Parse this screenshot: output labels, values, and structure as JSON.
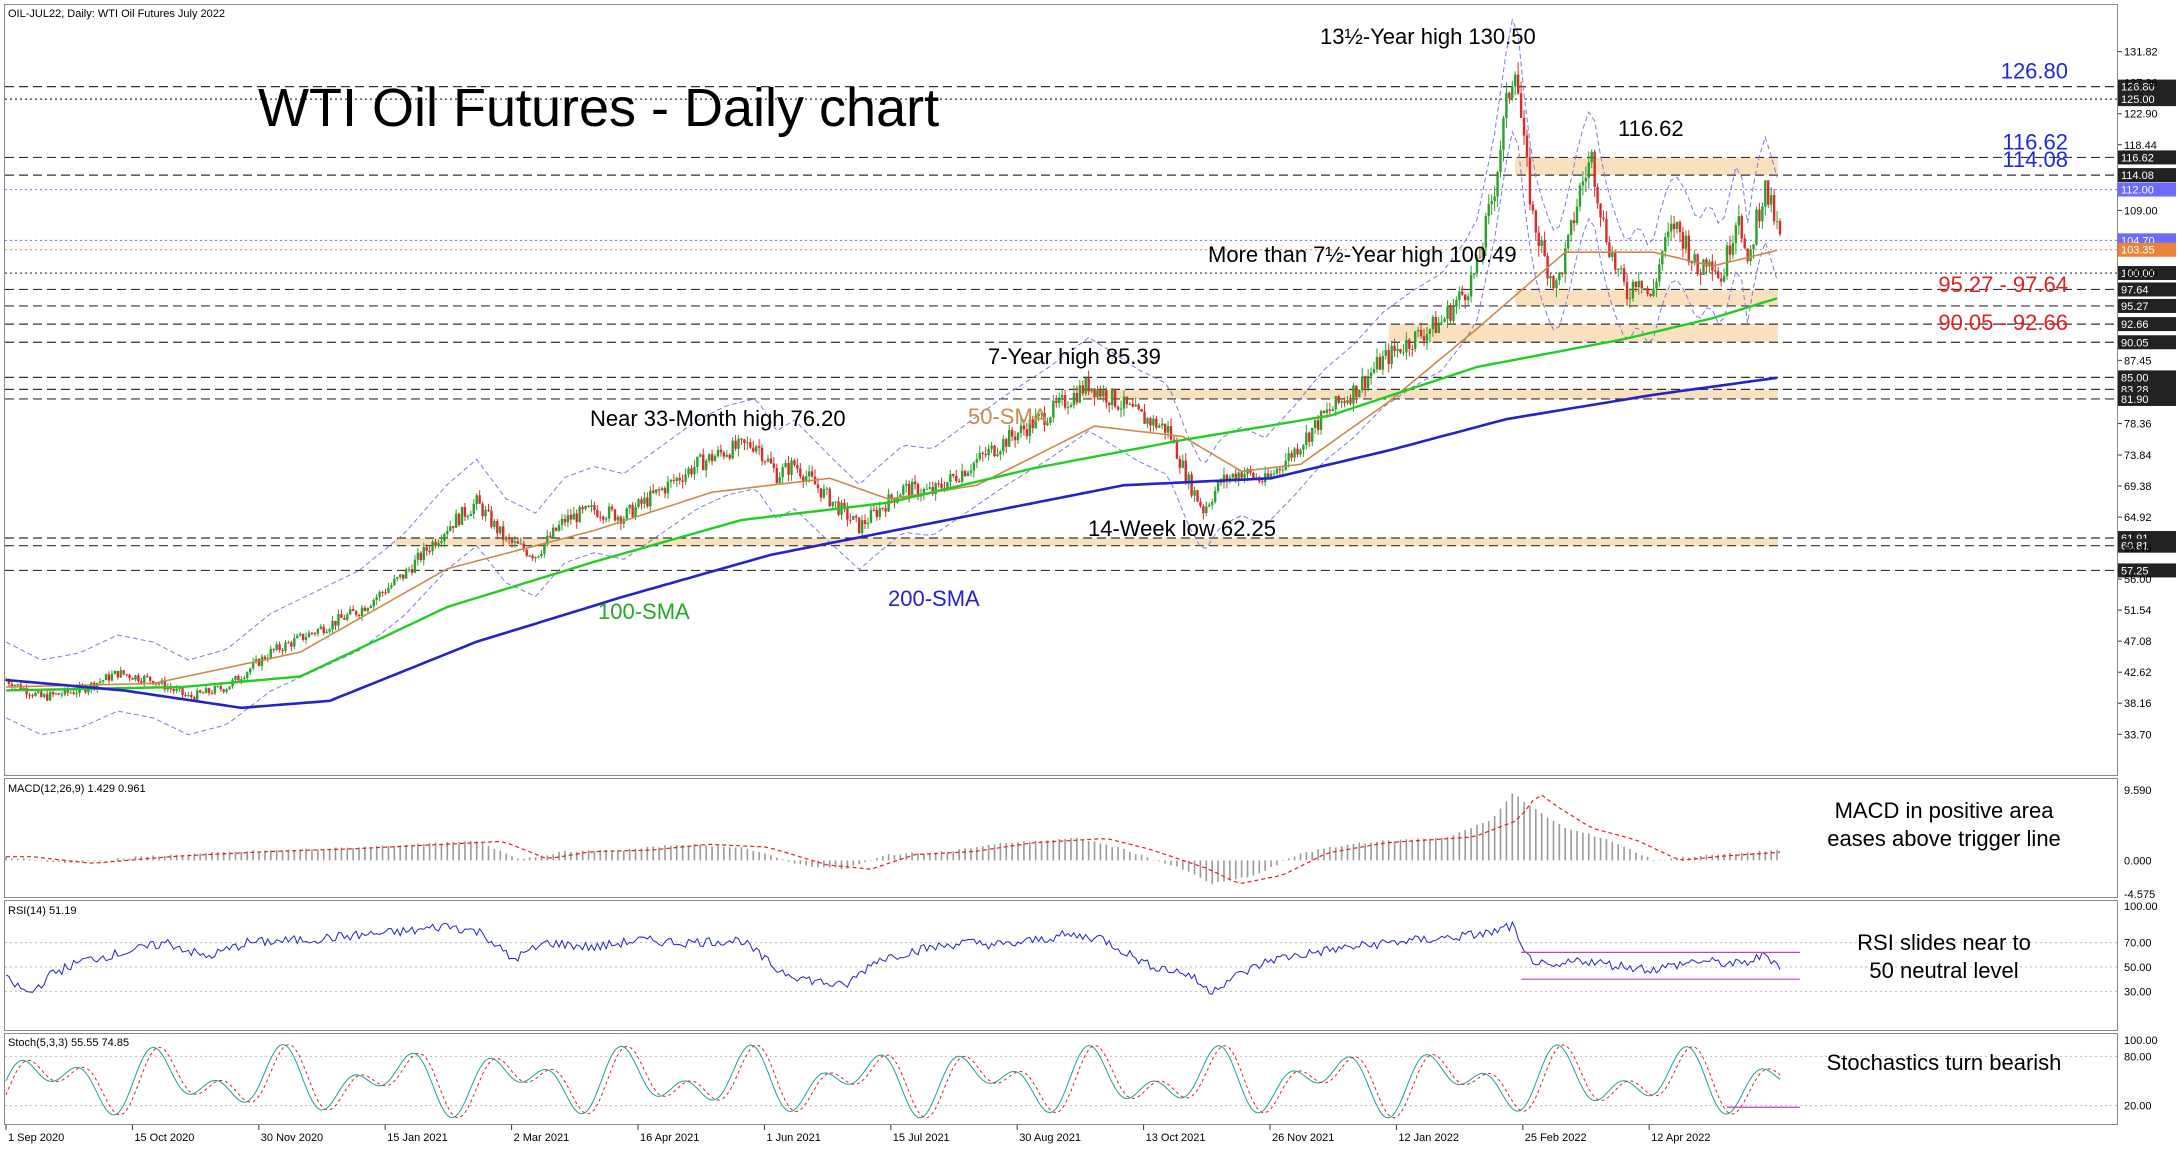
{
  "chart_data": {
    "symbol_header": "OIL-JUL22, Daily:  WTI Oil Futures July 2022",
    "title": "WTI Oil Futures - Daily chart",
    "type": "candlestick",
    "price_axis": {
      "ylim": [
        30.0,
        133.5
      ],
      "ticks": [
        131.82,
        127.36,
        122.9,
        118.44,
        109.0,
        100.0,
        87.45,
        78.36,
        73.84,
        69.38,
        64.92,
        60.46,
        56.0,
        51.54,
        47.08,
        42.62,
        38.16,
        33.7
      ]
    },
    "x_labels": [
      "1 Sep 2020",
      "15 Oct 2020",
      "30 Nov 2020",
      "15 Jan 2021",
      "2 Mar 2021",
      "16 Apr 2021",
      "1 Jun 2021",
      "15 Jul 2021",
      "30 Aug 2021",
      "13 Oct 2021",
      "26 Nov 2021",
      "12 Jan 2022",
      "25 Feb 2022",
      "12 Apr 2022"
    ],
    "levels": [
      {
        "value": 126.8,
        "label": "126.80",
        "style": "dashed",
        "label_color": "#1f2ad6",
        "axis_label": "126.80"
      },
      {
        "value": 125.0,
        "label": "",
        "style": "dotted",
        "label_color": "",
        "axis_label": "125.00"
      },
      {
        "value": 116.62,
        "label": "116.62",
        "style": "dashed",
        "label_color": "#1f2ad6",
        "axis_label": "116.62"
      },
      {
        "value": 114.08,
        "label": "114.08",
        "style": "dashed",
        "label_color": "#1f2ad6",
        "axis_label": "114.08"
      },
      {
        "value": 100.0,
        "label": "",
        "style": "dotted",
        "label_color": "",
        "axis_label": "100.00"
      },
      {
        "value": 97.64,
        "label": "",
        "style": "dashed",
        "label_color": "",
        "axis_label": "97.64"
      },
      {
        "value": 95.27,
        "label": "",
        "style": "dashed",
        "label_color": "",
        "axis_label": "95.27"
      },
      {
        "value": 92.66,
        "label": "",
        "style": "dashed",
        "label_color": "",
        "axis_label": "92.66"
      },
      {
        "value": 90.05,
        "label": "",
        "style": "dashed",
        "label_color": "",
        "axis_label": "90.05"
      },
      {
        "value": 85.0,
        "label": "",
        "style": "dashed",
        "label_color": "",
        "axis_label": "85.00"
      },
      {
        "value": 83.28,
        "label": "",
        "style": "dashed",
        "label_color": "",
        "axis_label": "83.28"
      },
      {
        "value": 81.9,
        "label": "",
        "style": "dashed",
        "label_color": "",
        "axis_label": "81.90"
      },
      {
        "value": 61.91,
        "label": "",
        "style": "dashed",
        "label_color": "",
        "axis_label": "61.91"
      },
      {
        "value": 60.81,
        "label": "",
        "style": "dashed",
        "label_color": "",
        "axis_label": "60.81"
      },
      {
        "value": 57.25,
        "label": "",
        "style": "dashed",
        "label_color": "",
        "axis_label": "57.25"
      }
    ],
    "marker_tags": [
      {
        "value": 112.0,
        "text": "112.00",
        "color": "#6b6bff"
      },
      {
        "value": 104.7,
        "text": "104.70",
        "color": "#6b6bff"
      },
      {
        "value": 103.35,
        "text": "103.35",
        "color": "#e8833a"
      }
    ],
    "zones": [
      {
        "from": 114.08,
        "to": 116.62,
        "x_start": "25 Feb 2022"
      },
      {
        "from": 95.27,
        "to": 97.64,
        "x_start": "25 Feb 2022"
      },
      {
        "from": 90.05,
        "to": 92.66,
        "x_start": "12 Jan 2022"
      },
      {
        "from": 81.9,
        "to": 83.28,
        "x_start": "13 Oct 2021"
      },
      {
        "from": 60.81,
        "to": 61.91,
        "x_start": "2 Mar 2021"
      }
    ],
    "zone_labels": [
      {
        "text": "95.27 - 97.64",
        "value": 96.4
      },
      {
        "text": "90.05 - 92.66",
        "value": 91.3
      }
    ],
    "annotations": [
      {
        "text": "13½-Year high 130.50",
        "value": 130.5,
        "date": "25 Feb 2022"
      },
      {
        "text": "116.62",
        "value": 116.62,
        "date": "25 Feb 2022"
      },
      {
        "text": "More than 7½-Year high 100.49",
        "value": 100.49,
        "date": "12 Jan 2022"
      },
      {
        "text": "7-Year high 85.39",
        "value": 85.39,
        "date": "13 Oct 2021"
      },
      {
        "text": "Near 33-Month high 76.20",
        "value": 76.2,
        "date": "1 Jun 2021"
      },
      {
        "text": "14-Week low 62.25",
        "value": 62.25,
        "date": "26 Nov 2021"
      },
      {
        "text": "50-SMA",
        "value": null,
        "date": "30 Aug 2021"
      },
      {
        "text": "100-SMA",
        "value": null,
        "date": "16 Apr 2021"
      },
      {
        "text": "200-SMA",
        "value": null,
        "date": "15 Jul 2021"
      }
    ],
    "series_colors": {
      "up": "#2aa12a",
      "down": "#d92b2b",
      "sma50": "#c98a4b",
      "sma100": "#22cc22",
      "sma200": "#2323c8",
      "bollinger": "#7a7ae0"
    },
    "price_path": [
      [
        0,
        41.5
      ],
      [
        12,
        39.0
      ],
      [
        25,
        40.0
      ],
      [
        38,
        42.5
      ],
      [
        50,
        41.5
      ],
      [
        62,
        39.0
      ],
      [
        75,
        40.5
      ],
      [
        90,
        45.5
      ],
      [
        105,
        48.5
      ],
      [
        120,
        51.5
      ],
      [
        135,
        56.5
      ],
      [
        150,
        63.5
      ],
      [
        160,
        67.0
      ],
      [
        170,
        61.5
      ],
      [
        180,
        59.5
      ],
      [
        190,
        64.5
      ],
      [
        200,
        66.0
      ],
      [
        210,
        65.0
      ],
      [
        220,
        68.0
      ],
      [
        235,
        72.5
      ],
      [
        245,
        74.5
      ],
      [
        255,
        75.5
      ],
      [
        262,
        71.0
      ],
      [
        268,
        72.5
      ],
      [
        280,
        67.5
      ],
      [
        290,
        63.5
      ],
      [
        298,
        66.5
      ],
      [
        305,
        69.0
      ],
      [
        315,
        68.5
      ],
      [
        325,
        71.5
      ],
      [
        340,
        76.0
      ],
      [
        355,
        80.0
      ],
      [
        368,
        84.0
      ],
      [
        374,
        82.5
      ],
      [
        385,
        79.5
      ],
      [
        395,
        77.5
      ],
      [
        402,
        70.0
      ],
      [
        407,
        66.0
      ],
      [
        413,
        70.0
      ],
      [
        420,
        71.5
      ],
      [
        428,
        70.0
      ],
      [
        438,
        74.5
      ],
      [
        448,
        79.5
      ],
      [
        458,
        83.0
      ],
      [
        468,
        87.5
      ],
      [
        478,
        90.5
      ],
      [
        488,
        93.0
      ],
      [
        496,
        97.5
      ],
      [
        500,
        100.5
      ],
      [
        506,
        112.5
      ],
      [
        510,
        124.0
      ],
      [
        513,
        130.5
      ],
      [
        516,
        118.0
      ],
      [
        519,
        108.0
      ],
      [
        523,
        102.0
      ],
      [
        527,
        98.0
      ],
      [
        531,
        104.0
      ],
      [
        535,
        112.0
      ],
      [
        539,
        116.62
      ],
      [
        543,
        107.0
      ],
      [
        547,
        101.0
      ],
      [
        551,
        97.0
      ],
      [
        555,
        100.0
      ],
      [
        559,
        96.0
      ],
      [
        563,
        103.0
      ],
      [
        567,
        107.0
      ],
      [
        571,
        104.5
      ],
      [
        575,
        100.0
      ],
      [
        579,
        103.0
      ],
      [
        583,
        99.0
      ],
      [
        587,
        106.0
      ],
      [
        589,
        109.5
      ],
      [
        592,
        100.0
      ],
      [
        595,
        108.0
      ],
      [
        598,
        112.0
      ],
      [
        601,
        108.0
      ],
      [
        603,
        104.7
      ]
    ],
    "candle_count": 604,
    "sma": {
      "sma50": [
        [
          0,
          40.5
        ],
        [
          50,
          41.0
        ],
        [
          100,
          45.5
        ],
        [
          150,
          57.5
        ],
        [
          200,
          63.0
        ],
        [
          240,
          68.5
        ],
        [
          280,
          70.5
        ],
        [
          300,
          67.5
        ],
        [
          330,
          69.5
        ],
        [
          370,
          78.0
        ],
        [
          400,
          76.5
        ],
        [
          420,
          71.5
        ],
        [
          440,
          72.5
        ],
        [
          470,
          81.5
        ],
        [
          500,
          92.0
        ],
        [
          530,
          103.0
        ],
        [
          560,
          103.0
        ],
        [
          580,
          101.0
        ],
        [
          603,
          103.35
        ]
      ],
      "sma100": [
        [
          0,
          40.0
        ],
        [
          60,
          40.5
        ],
        [
          100,
          42.0
        ],
        [
          150,
          52.0
        ],
        [
          200,
          58.5
        ],
        [
          250,
          64.5
        ],
        [
          300,
          67.0
        ],
        [
          350,
          72.0
        ],
        [
          400,
          76.0
        ],
        [
          450,
          79.5
        ],
        [
          500,
          86.5
        ],
        [
          550,
          90.5
        ],
        [
          580,
          93.5
        ],
        [
          603,
          96.5
        ]
      ],
      "sma200": [
        [
          0,
          41.5
        ],
        [
          40,
          40.0
        ],
        [
          80,
          37.5
        ],
        [
          110,
          38.5
        ],
        [
          160,
          47.0
        ],
        [
          210,
          53.5
        ],
        [
          260,
          59.5
        ],
        [
          320,
          64.5
        ],
        [
          380,
          69.5
        ],
        [
          430,
          70.5
        ],
        [
          470,
          74.5
        ],
        [
          510,
          79.0
        ],
        [
          560,
          82.5
        ],
        [
          603,
          85.0
        ]
      ]
    },
    "bollinger_width": 4.2,
    "macd": {
      "header": "MACD(12,26,9) 1.429 0.961",
      "ticks": [
        9.59,
        0.0,
        -4.575
      ],
      "ylim": [
        -4.575,
        9.59
      ],
      "path": [
        [
          0,
          0.5
        ],
        [
          20,
          -0.4
        ],
        [
          50,
          0.6
        ],
        [
          80,
          1.2
        ],
        [
          110,
          1.6
        ],
        [
          140,
          2.2
        ],
        [
          160,
          2.6
        ],
        [
          175,
          0.2
        ],
        [
          190,
          1.2
        ],
        [
          210,
          1.4
        ],
        [
          230,
          2.2
        ],
        [
          250,
          1.8
        ],
        [
          270,
          -0.6
        ],
        [
          285,
          -1.2
        ],
        [
          300,
          0.8
        ],
        [
          320,
          1.2
        ],
        [
          340,
          2.4
        ],
        [
          365,
          3.0
        ],
        [
          380,
          1.5
        ],
        [
          400,
          -1.2
        ],
        [
          410,
          -3.2
        ],
        [
          425,
          -2.0
        ],
        [
          440,
          1.0
        ],
        [
          460,
          2.4
        ],
        [
          490,
          3.2
        ],
        [
          505,
          5.5
        ],
        [
          512,
          9.2
        ],
        [
          518,
          7.4
        ],
        [
          530,
          4.4
        ],
        [
          545,
          2.8
        ],
        [
          560,
          0.0
        ],
        [
          575,
          0.6
        ],
        [
          590,
          1.0
        ],
        [
          603,
          1.43
        ]
      ],
      "label": "MACD in positive area eases above trigger line"
    },
    "rsi": {
      "header": "RSI(14) 51.19",
      "ticks": [
        100.0,
        70.0,
        50.0,
        30.0
      ],
      "ylim": [
        0,
        100
      ],
      "path": [
        [
          0,
          40
        ],
        [
          8,
          28
        ],
        [
          16,
          45
        ],
        [
          26,
          55
        ],
        [
          40,
          62
        ],
        [
          55,
          70
        ],
        [
          68,
          58
        ],
        [
          82,
          70
        ],
        [
          100,
          72
        ],
        [
          120,
          76
        ],
        [
          140,
          80
        ],
        [
          150,
          84
        ],
        [
          162,
          78
        ],
        [
          172,
          56
        ],
        [
          184,
          70
        ],
        [
          200,
          66
        ],
        [
          215,
          72
        ],
        [
          230,
          70
        ],
        [
          250,
          72
        ],
        [
          262,
          48
        ],
        [
          272,
          40
        ],
        [
          285,
          34
        ],
        [
          296,
          56
        ],
        [
          310,
          64
        ],
        [
          325,
          70
        ],
        [
          340,
          68
        ],
        [
          360,
          76
        ],
        [
          372,
          74
        ],
        [
          388,
          52
        ],
        [
          402,
          44
        ],
        [
          409,
          30
        ],
        [
          416,
          40
        ],
        [
          430,
          56
        ],
        [
          450,
          64
        ],
        [
          470,
          70
        ],
        [
          490,
          74
        ],
        [
          505,
          78
        ],
        [
          512,
          84
        ],
        [
          516,
          60
        ],
        [
          525,
          48
        ],
        [
          535,
          56
        ],
        [
          545,
          52
        ],
        [
          560,
          48
        ],
        [
          575,
          55
        ],
        [
          590,
          52
        ],
        [
          598,
          60
        ],
        [
          603,
          51.19
        ]
      ],
      "label": "RSI slides near to 50 neutral level"
    },
    "stoch": {
      "header": "Stoch(5,3,3) 55.55 74.85",
      "ticks": [
        100.0,
        80.0,
        20.0
      ],
      "ylim": [
        0,
        100
      ],
      "label": "Stochastics turn bearish"
    }
  }
}
